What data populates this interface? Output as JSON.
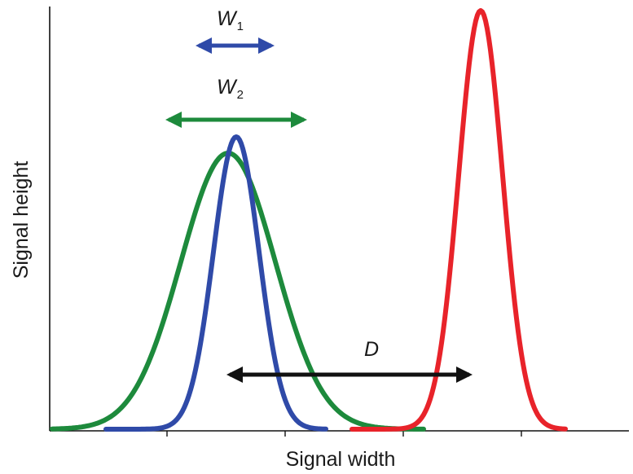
{
  "axes": {
    "x_label": "Signal width",
    "y_label": "Signal height"
  },
  "arrows": {
    "w1": {
      "label": "W",
      "subscript": "1",
      "color": "#2f4aa8"
    },
    "w2": {
      "label": "W",
      "subscript": "2",
      "color": "#1d8a3c"
    },
    "d": {
      "label": "D",
      "color": "#111111"
    }
  },
  "curves": [
    {
      "name": "blue",
      "color": "#2f4aa8"
    },
    {
      "name": "green",
      "color": "#1d8a3c"
    },
    {
      "name": "red",
      "color": "#e8232a"
    }
  ]
}
